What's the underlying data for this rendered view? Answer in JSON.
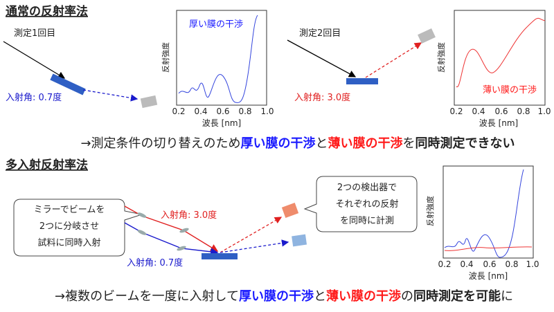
{
  "section1": {
    "title": "通常の反射率法",
    "measure1": "測定1回目",
    "angle1": "入射角: 0.7度",
    "measure2": "測定2回目",
    "angle2": "入射角: 3.0度",
    "chart1": {
      "legend": "厚い膜の干渉",
      "ylabel": "反射強度",
      "xlabel": "波長 [nm]",
      "xticks": [
        "0.2",
        "0.4",
        "0.6",
        "0.8",
        "1.0"
      ]
    },
    "chart2": {
      "legend": "薄い膜の干渉",
      "ylabel": "反射強度",
      "xlabel": "波長 [nm]",
      "xticks": [
        "0.2",
        "0.4",
        "0.6",
        "0.8",
        "1.0"
      ]
    },
    "conclusion": [
      "→測定条件の切り替えのため",
      "厚い膜の干渉",
      "と",
      "薄い膜の干渉",
      "を",
      "同時測定できない"
    ]
  },
  "section2": {
    "title": "多入射反射率法",
    "callout1": [
      "ミラーでビームを",
      "2つに分岐させ",
      "試料に同時入射"
    ],
    "angle_red": "入射角: 3.0度",
    "angle_blue": "入射角: 0.7度",
    "callout2": [
      "2つの検出器で",
      "それぞれの反射",
      "を同時に計測"
    ],
    "chart3": {
      "ylabel": "反射強度",
      "xlabel": "波長 [nm]",
      "xticks": [
        "0.2",
        "0.4",
        "0.6",
        "0.8",
        "1.0"
      ]
    },
    "conclusion": [
      "→複数のビームを一度に入射して",
      "厚い膜の干渉",
      "と",
      "薄い膜の干渉",
      "の",
      "同時測定を可能",
      "に"
    ]
  }
}
